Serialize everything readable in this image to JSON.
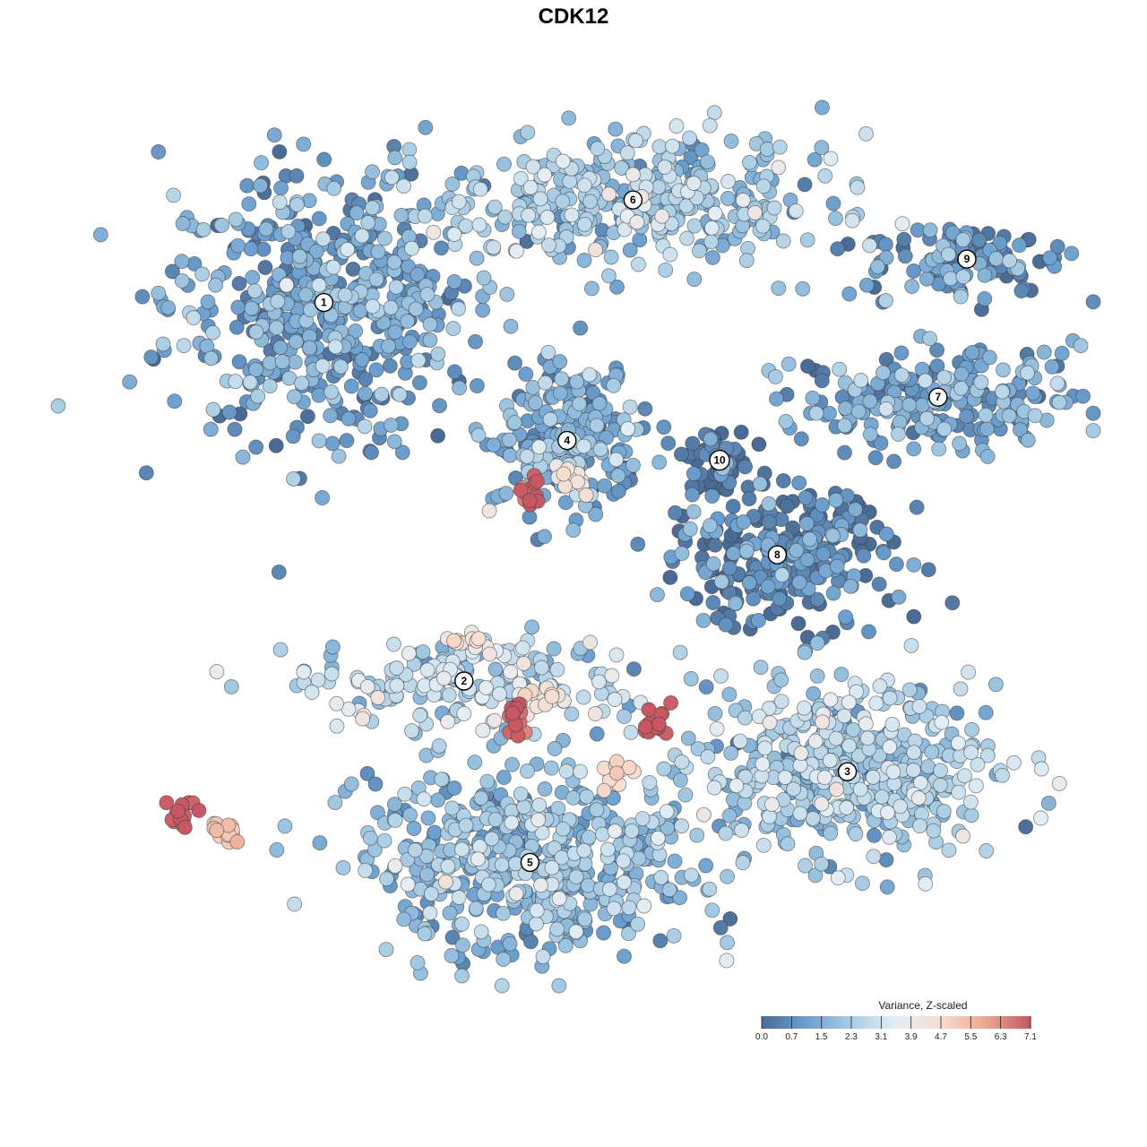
{
  "chart_data": {
    "type": "scatter",
    "title": "CDK12",
    "xlabel": "",
    "ylabel": "",
    "grid": false,
    "legend": {
      "title": "Variance, Z-scaled",
      "placement": "bottom-right",
      "ticks": [
        "0.0",
        "0.7",
        "1.5",
        "2.3",
        "3.1",
        "3.9",
        "4.7",
        "5.5",
        "6.3",
        "7.1"
      ],
      "range": [
        0.0,
        7.1
      ],
      "colors": [
        "#4a6b95",
        "#6b9fcf",
        "#a9cde4",
        "#e4eef5",
        "#f7ddd0",
        "#eda88f",
        "#c75762"
      ]
    },
    "clusters": [
      {
        "label": "1",
        "x": -0.66,
        "y": 0.71,
        "value": 1.3
      },
      {
        "label": "2",
        "x": -0.32,
        "y": -0.25,
        "value": 2.6
      },
      {
        "label": "3",
        "x": 0.61,
        "y": -0.48,
        "value": 2.3
      },
      {
        "label": "4",
        "x": -0.07,
        "y": 0.36,
        "value": 1.5
      },
      {
        "label": "5",
        "x": -0.16,
        "y": -0.71,
        "value": 1.9
      },
      {
        "label": "6",
        "x": 0.09,
        "y": 0.97,
        "value": 2.2
      },
      {
        "label": "7",
        "x": 0.83,
        "y": 0.47,
        "value": 1.3
      },
      {
        "label": "8",
        "x": 0.44,
        "y": 0.07,
        "value": 0.5
      },
      {
        "label": "9",
        "x": 0.9,
        "y": 0.82,
        "value": 0.9
      },
      {
        "label": "10",
        "x": 0.3,
        "y": 0.31,
        "value": 0.3
      }
    ],
    "hotspots": [
      {
        "x": -1.0,
        "y": -0.59,
        "value": 7.1
      },
      {
        "x": -0.9,
        "y": -0.63,
        "value": 5.0
      },
      {
        "x": 0.05,
        "y": -0.48,
        "value": 4.8
      },
      {
        "x": -0.13,
        "y": -0.3,
        "value": 4.4
      },
      {
        "x": -0.3,
        "y": -0.16,
        "value": 4.3
      },
      {
        "x": -0.06,
        "y": 0.27,
        "value": 4.2
      },
      {
        "x": 0.15,
        "y": -0.36,
        "value": 7.0
      },
      {
        "x": -0.19,
        "y": -0.34,
        "value": 6.9
      },
      {
        "x": -0.16,
        "y": 0.23,
        "value": 6.8
      }
    ]
  }
}
